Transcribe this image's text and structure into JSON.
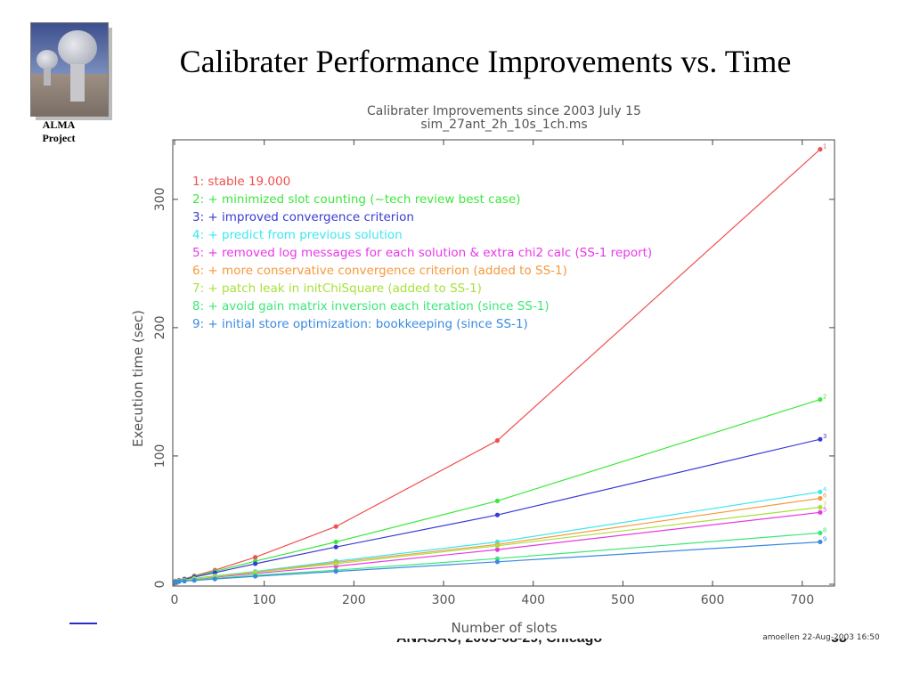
{
  "slide": {
    "title": "Calibrater Performance Improvements vs. Time",
    "logo_caption_1": "ALMA",
    "logo_caption_2": "Project",
    "footer": "ANASAC, 2003-08-29, Chicago",
    "page_number": "53"
  },
  "chart_data": {
    "type": "line",
    "title": "Calibrater Improvements since 2003 July 15",
    "subtitle": "sim_27ant_2h_10s_1ch.ms",
    "xlabel": "Number of slots",
    "ylabel": "Execution time (sec)",
    "xlim": [
      0,
      735
    ],
    "ylim": [
      0,
      345
    ],
    "xticks": [
      0,
      100,
      200,
      300,
      400,
      500,
      600,
      700
    ],
    "yticks": [
      0,
      100,
      200,
      300
    ],
    "grid": false,
    "legend_position": "top-left",
    "annotation": "amoellen 22-Aug-2003 16:50",
    "x": [
      1,
      5,
      11,
      22,
      45,
      90,
      180,
      360,
      720
    ],
    "series": [
      {
        "name": "1: stable 19.000",
        "label": "1",
        "color": "#f05050",
        "values": [
          2.5,
          3.2,
          4.2,
          6.5,
          11,
          21,
          45,
          112,
          339
        ]
      },
      {
        "name": "2: + minimized slot counting (~tech review best case)",
        "label": "2",
        "color": "#3ce83c",
        "values": [
          2.4,
          3.0,
          4.0,
          6.0,
          10,
          18,
          33,
          65,
          144
        ]
      },
      {
        "name": "3: + improved convergence criterion",
        "label": "3",
        "color": "#3a3ad6",
        "values": [
          2.3,
          2.9,
          3.8,
          5.6,
          9,
          16,
          29,
          54,
          113
        ]
      },
      {
        "name": "4: + predict from previous solution",
        "label": "4",
        "color": "#3ce8f0",
        "values": [
          2.2,
          2.6,
          3.2,
          4.5,
          6.5,
          10,
          18,
          33,
          72
        ]
      },
      {
        "name": "5: + removed log messages for each solution & extra chi2 calc (SS-1 report)",
        "label": "5",
        "color": "#e838e8",
        "values": [
          2.1,
          2.4,
          2.9,
          4.0,
          5.5,
          8.5,
          14,
          27,
          56
        ]
      },
      {
        "name": "6: + more conservative convergence criterion (added to SS-1)",
        "label": "6",
        "color": "#f59a3c",
        "values": [
          2.2,
          2.6,
          3.1,
          4.3,
          6.2,
          9.5,
          17,
          31,
          67
        ]
      },
      {
        "name": "7: + patch leak in initChiSquare (added to SS-1)",
        "label": "7",
        "color": "#a8e038",
        "values": [
          2.2,
          2.5,
          3.0,
          4.2,
          6.0,
          9.2,
          16,
          30,
          60
        ]
      },
      {
        "name": "8: + avoid gain matrix inversion each iteration (since SS-1)",
        "label": "8",
        "color": "#3ce878",
        "values": [
          2.0,
          2.2,
          2.6,
          3.3,
          4.6,
          7.0,
          11,
          20,
          40
        ]
      },
      {
        "name": "9: + initial store optimization: bookkeeping (since SS-1)",
        "label": "9",
        "color": "#3a8ae0",
        "values": [
          1.9,
          2.1,
          2.4,
          3.0,
          4.1,
          6.2,
          10,
          17.5,
          33
        ]
      }
    ]
  }
}
